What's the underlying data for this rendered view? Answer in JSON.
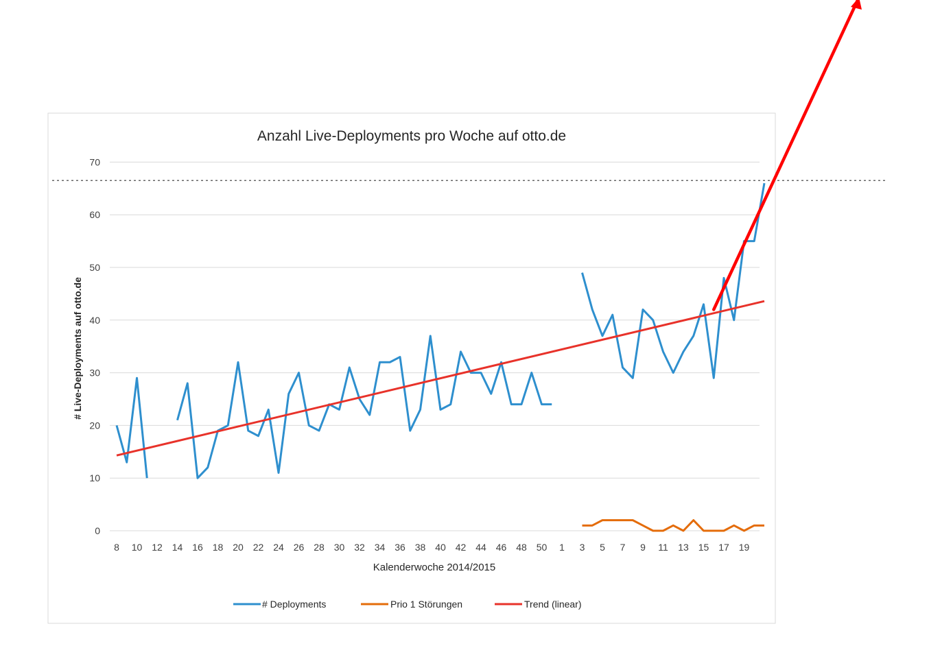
{
  "chart_data": {
    "type": "line",
    "title": "Anzahl Live-Deployments pro Woche auf otto.de",
    "xlabel": "Kalenderwoche 2014/2015",
    "ylabel": "# Live-Deployments auf otto.de",
    "ylim": [
      0,
      70
    ],
    "yticks": [
      0,
      10,
      20,
      30,
      40,
      50,
      60,
      70
    ],
    "grid": true,
    "legend_position": "bottom",
    "reference_line": {
      "style": "dotted",
      "y": 66.5
    },
    "annotation_arrow": {
      "color": "#ff0000",
      "from_x": "15",
      "from_y": 42,
      "direction": "up-right"
    },
    "x": [
      "8",
      "9",
      "10",
      "11",
      "12",
      "13",
      "14",
      "15",
      "16",
      "17",
      "18",
      "19",
      "20",
      "21",
      "22",
      "23",
      "24",
      "25",
      "26",
      "27",
      "28",
      "29",
      "30",
      "31",
      "32",
      "33",
      "34",
      "35",
      "36",
      "37",
      "38",
      "39",
      "40",
      "41",
      "42",
      "43",
      "44",
      "45",
      "46",
      "47",
      "48",
      "49",
      "50",
      "51",
      "52",
      "1",
      "2",
      "3",
      "4",
      "5",
      "6",
      "7",
      "8",
      "9",
      "10",
      "11",
      "12",
      "13",
      "14",
      "15",
      "16",
      "17",
      "18",
      "19",
      "20"
    ],
    "x_tick_labels": [
      "8",
      "10",
      "12",
      "14",
      "16",
      "18",
      "20",
      "22",
      "24",
      "26",
      "28",
      "30",
      "32",
      "34",
      "36",
      "38",
      "40",
      "42",
      "44",
      "46",
      "48",
      "50",
      "1",
      "3",
      "5",
      "7",
      "9",
      "11",
      "13",
      "15",
      "17",
      "19"
    ],
    "series": [
      {
        "name": "# Deployments",
        "color": "#2e8fce",
        "values": [
          20,
          13,
          29,
          10,
          null,
          null,
          21,
          28,
          10,
          12,
          19,
          20,
          32,
          19,
          18,
          23,
          11,
          26,
          30,
          20,
          19,
          24,
          23,
          31,
          25,
          22,
          32,
          32,
          33,
          19,
          23,
          37,
          23,
          24,
          34,
          30,
          30,
          26,
          32,
          24,
          24,
          30,
          24,
          24,
          null,
          null,
          49,
          42,
          37,
          41,
          31,
          29,
          42,
          40,
          34,
          30,
          34,
          37,
          43,
          29,
          48,
          40,
          55,
          55,
          66
        ]
      },
      {
        "name": "Prio 1 Störungen",
        "color": "#e46c0a",
        "values": [
          null,
          null,
          null,
          null,
          null,
          null,
          null,
          null,
          null,
          null,
          null,
          null,
          null,
          null,
          null,
          null,
          null,
          null,
          null,
          null,
          null,
          null,
          null,
          null,
          null,
          null,
          null,
          null,
          null,
          null,
          null,
          null,
          null,
          null,
          null,
          null,
          null,
          null,
          null,
          null,
          null,
          null,
          null,
          null,
          null,
          null,
          1,
          1,
          2,
          2,
          2,
          2,
          1,
          0,
          0,
          1,
          0,
          2,
          0,
          0,
          0,
          1,
          0,
          1,
          1
        ]
      },
      {
        "name": "Trend (linear)",
        "color": "#e8322a",
        "type": "linear",
        "start": 14.3,
        "end": 43.6
      }
    ]
  }
}
